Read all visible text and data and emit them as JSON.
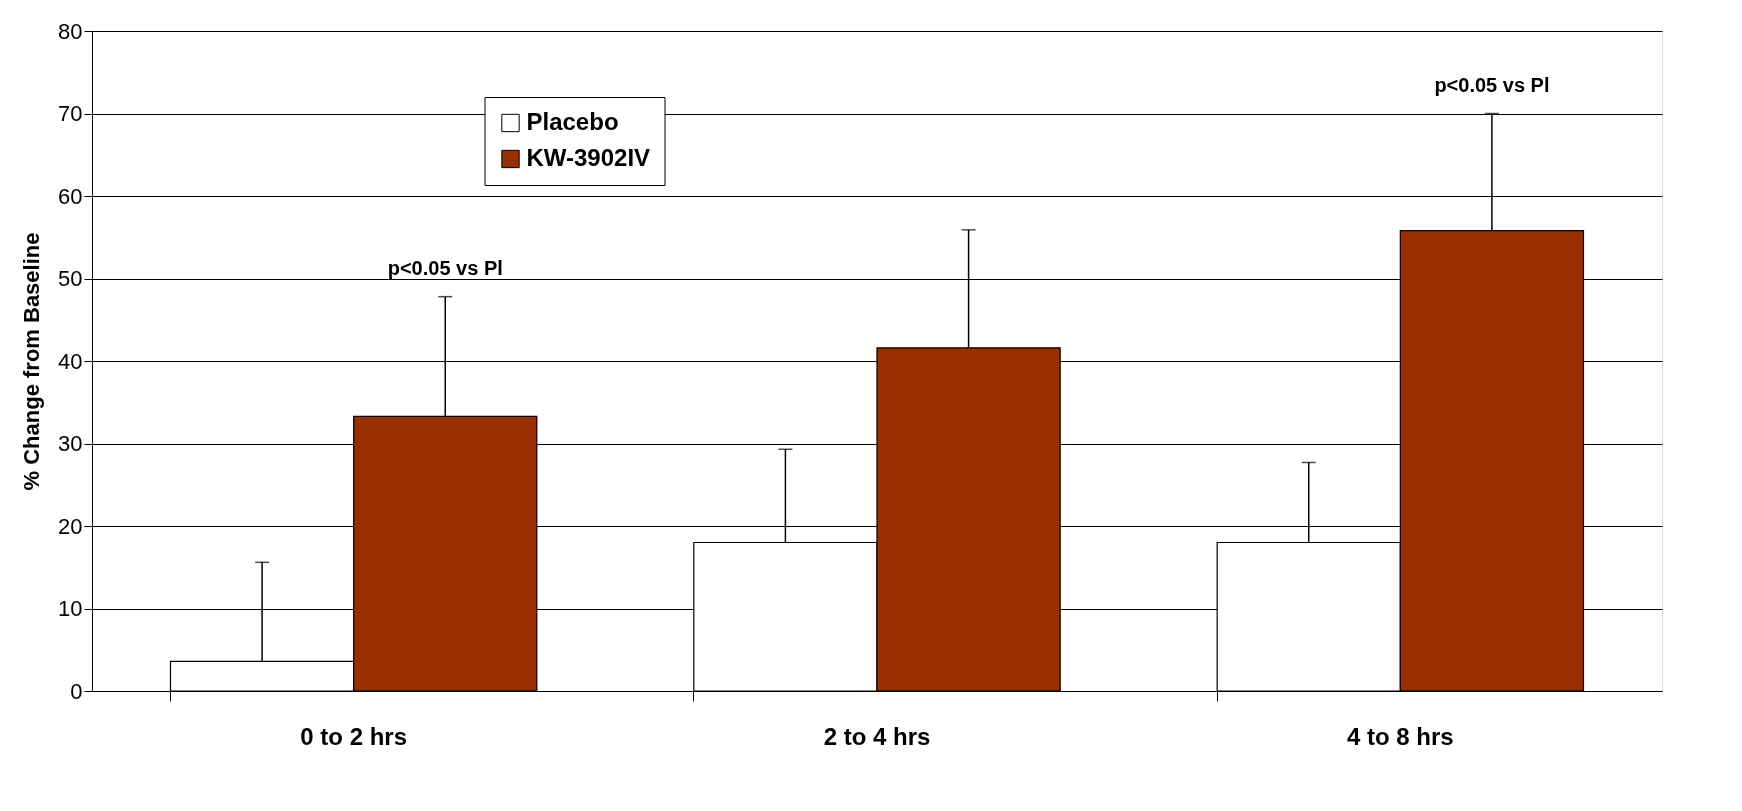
{
  "chart_data": {
    "type": "bar",
    "ylabel": "% Change from Baseline",
    "categories": [
      "0 to 2 hrs",
      "2 to 4 hrs",
      "4 to 8 hrs"
    ],
    "series": [
      {
        "name": "Placebo",
        "color": "#ffffff",
        "values": [
          3.6,
          18,
          18
        ],
        "errors": [
          [
            3.6,
            15.6
          ],
          [
            18,
            29.3
          ],
          [
            18,
            27.7
          ]
        ]
      },
      {
        "name": "KW-3902IV",
        "color": "#992e00",
        "values": [
          33.3,
          41.6,
          55.8
        ],
        "errors": [
          [
            33.3,
            47.8
          ],
          [
            41.6,
            55.9
          ],
          [
            55.8,
            70
          ]
        ]
      }
    ],
    "ylim": [
      0,
      80
    ],
    "yticks": [
      0,
      10,
      20,
      30,
      40,
      50,
      60,
      70,
      80
    ],
    "grid": "y",
    "legend": "top left",
    "annotations": [
      "p<0.05 vs Pl",
      "p<0.05 vs Pl"
    ]
  }
}
